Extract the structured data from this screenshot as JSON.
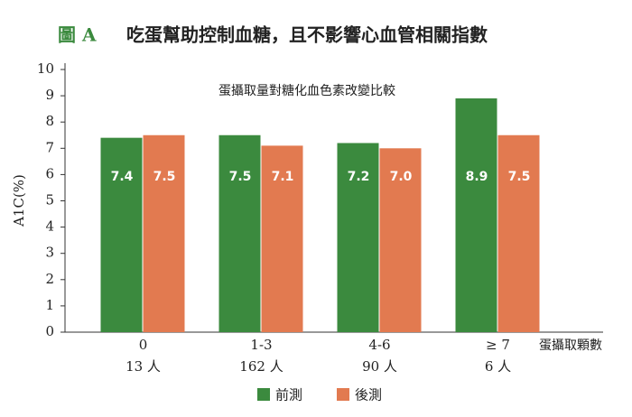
{
  "chart_data": {
    "type": "bar",
    "figure_label": "圖 A",
    "title": "吃蛋幫助控制血糖，且不影響心血管相關指數",
    "subtitle": "蛋攝取量對糖化血色素改變比較",
    "y_label": "A1C(%)",
    "x_label": "蛋攝取顆數",
    "categories": [
      "0",
      "1-3",
      "4-6",
      "≥ 7"
    ],
    "sample_sizes": [
      "13 人",
      "162 人",
      "90 人",
      "6 人"
    ],
    "series": [
      {
        "name": "前測",
        "color": "#3b8a3e",
        "values": [
          7.4,
          7.5,
          7.2,
          8.9
        ]
      },
      {
        "name": "後測",
        "color": "#e27a50",
        "values": [
          7.5,
          7.1,
          7.0,
          7.5
        ],
        "value_labels": [
          "7.5",
          "7.1",
          "7.0",
          "7.5"
        ]
      }
    ],
    "ylim": [
      0,
      10
    ],
    "yticks": [
      0,
      1,
      2,
      3,
      4,
      5,
      6,
      7,
      8,
      9,
      10
    ]
  }
}
